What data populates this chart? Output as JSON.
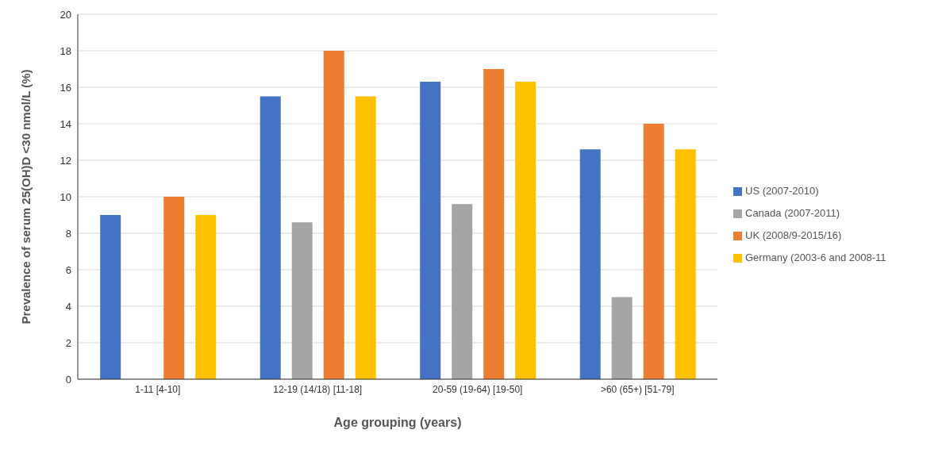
{
  "chart_data": {
    "type": "bar",
    "xlabel": "Age grouping (years)",
    "ylabel": "Prevalence of serum 25(OH)D <30 nmol/L (%)",
    "categories": [
      "1-11 [4-10]",
      "12-19 (14/18) [11-18]",
      "20-59 (19-64) [19-50]",
      ">60 (65+) [51-79]"
    ],
    "series": [
      {
        "name": "US (2007-2010)",
        "color": "#4472c4",
        "values": [
          9.0,
          15.5,
          16.3,
          12.6
        ]
      },
      {
        "name": "Canada (2007-2011)",
        "color": "#a5a5a5",
        "values": [
          null,
          8.6,
          9.6,
          4.5
        ]
      },
      {
        "name": "UK (2008/9-2015/16)",
        "color": "#ed7d31",
        "values": [
          10,
          18,
          17,
          14
        ]
      },
      {
        "name": "Germany (2003-6 and 2008-11",
        "color": "#ffc000",
        "values": [
          9.0,
          15.5,
          16.3,
          12.6
        ]
      }
    ],
    "ylim": [
      0,
      20
    ],
    "yticks": [
      0,
      2,
      4,
      6,
      8,
      10,
      12,
      14,
      16,
      18,
      20
    ],
    "grid": "y",
    "legend": "right"
  }
}
